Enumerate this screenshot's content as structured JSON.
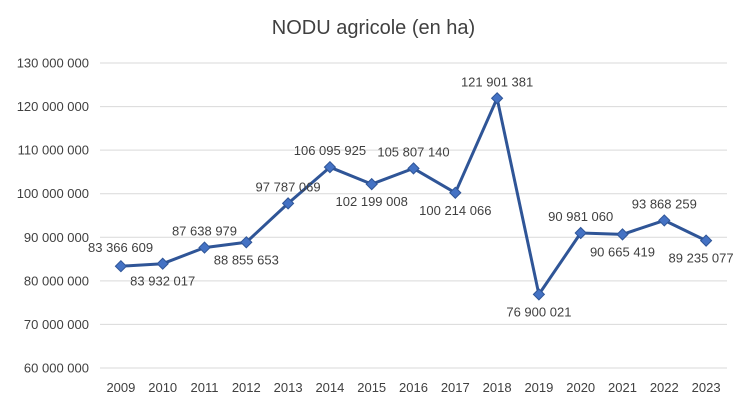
{
  "chart_data": {
    "type": "line",
    "title": "NODU agricole (en ha)",
    "xlabel": "",
    "ylabel": "",
    "categories": [
      "2009",
      "2010",
      "2011",
      "2012",
      "2013",
      "2014",
      "2015",
      "2016",
      "2017",
      "2018",
      "2019",
      "2020",
      "2021",
      "2022",
      "2023"
    ],
    "series": [
      {
        "values": [
          83366609,
          83932017,
          87638979,
          88855653,
          97787069,
          106095925,
          102199008,
          105807140,
          100214066,
          121901381,
          76900021,
          90981060,
          90665419,
          93868259,
          89235077
        ],
        "labels": [
          "83 366 609",
          "83 932 017",
          "87 638 979",
          "88 855 653",
          "97 787 069",
          "106 095 925",
          "102 199 008",
          "105 807 140",
          "100 214 066",
          "121 901 381",
          "76 900 021",
          "90 981 060",
          "90 665 419",
          "93 868 259",
          "89 235 077"
        ]
      }
    ],
    "ylim": [
      60000000,
      130000000
    ],
    "yticks": [
      60000000,
      70000000,
      80000000,
      90000000,
      100000000,
      110000000,
      120000000,
      130000000
    ],
    "ytick_labels": [
      "60 000 000",
      "70 000 000",
      "80 000 000",
      "90 000 000",
      "100 000 000",
      "110 000 000",
      "120 000 000",
      "130 000 000"
    ],
    "grid": true,
    "legend": "none",
    "colors": {
      "line": "#2F5597",
      "marker_fill": "#4472C4",
      "marker_stroke": "#2F5597",
      "grid": "#D9D9D9",
      "text": "#404040"
    }
  }
}
